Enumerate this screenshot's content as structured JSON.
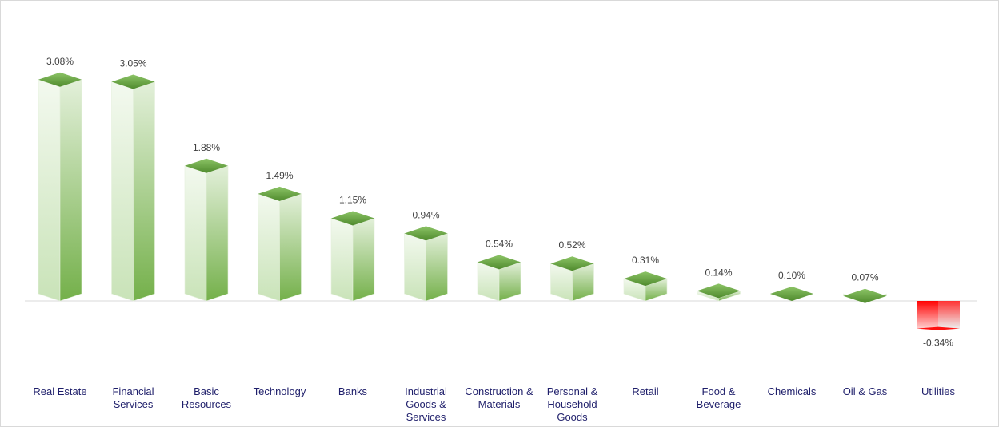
{
  "chart_data": {
    "type": "bar",
    "title": "",
    "xlabel": "",
    "ylabel": "",
    "categories": [
      [
        "Real Estate"
      ],
      [
        "Financial",
        "Services"
      ],
      [
        "Basic",
        "Resources"
      ],
      [
        "Technology"
      ],
      [
        "Banks"
      ],
      [
        "Industrial",
        "Goods &",
        "Services"
      ],
      [
        "Construction &",
        "Materials"
      ],
      [
        "Personal &",
        "Household",
        "Goods"
      ],
      [
        "Retail"
      ],
      [
        "Food &",
        "Beverage"
      ],
      [
        "Chemicals"
      ],
      [
        "Oil & Gas"
      ],
      [
        "Utilities"
      ]
    ],
    "values": [
      3.08,
      3.05,
      1.88,
      1.49,
      1.15,
      0.94,
      0.54,
      0.52,
      0.31,
      0.14,
      0.1,
      0.07,
      -0.34
    ],
    "value_labels": [
      "3.08%",
      "3.05%",
      "1.88%",
      "1.49%",
      "1.15%",
      "0.94%",
      "0.54%",
      "0.52%",
      "0.31%",
      "0.14%",
      "0.10%",
      "0.07%",
      "-0.34%"
    ],
    "unit": "%",
    "grid": false,
    "legend": "none",
    "colors": {
      "positive": "#70ad47",
      "negative": "#ff0000"
    }
  }
}
